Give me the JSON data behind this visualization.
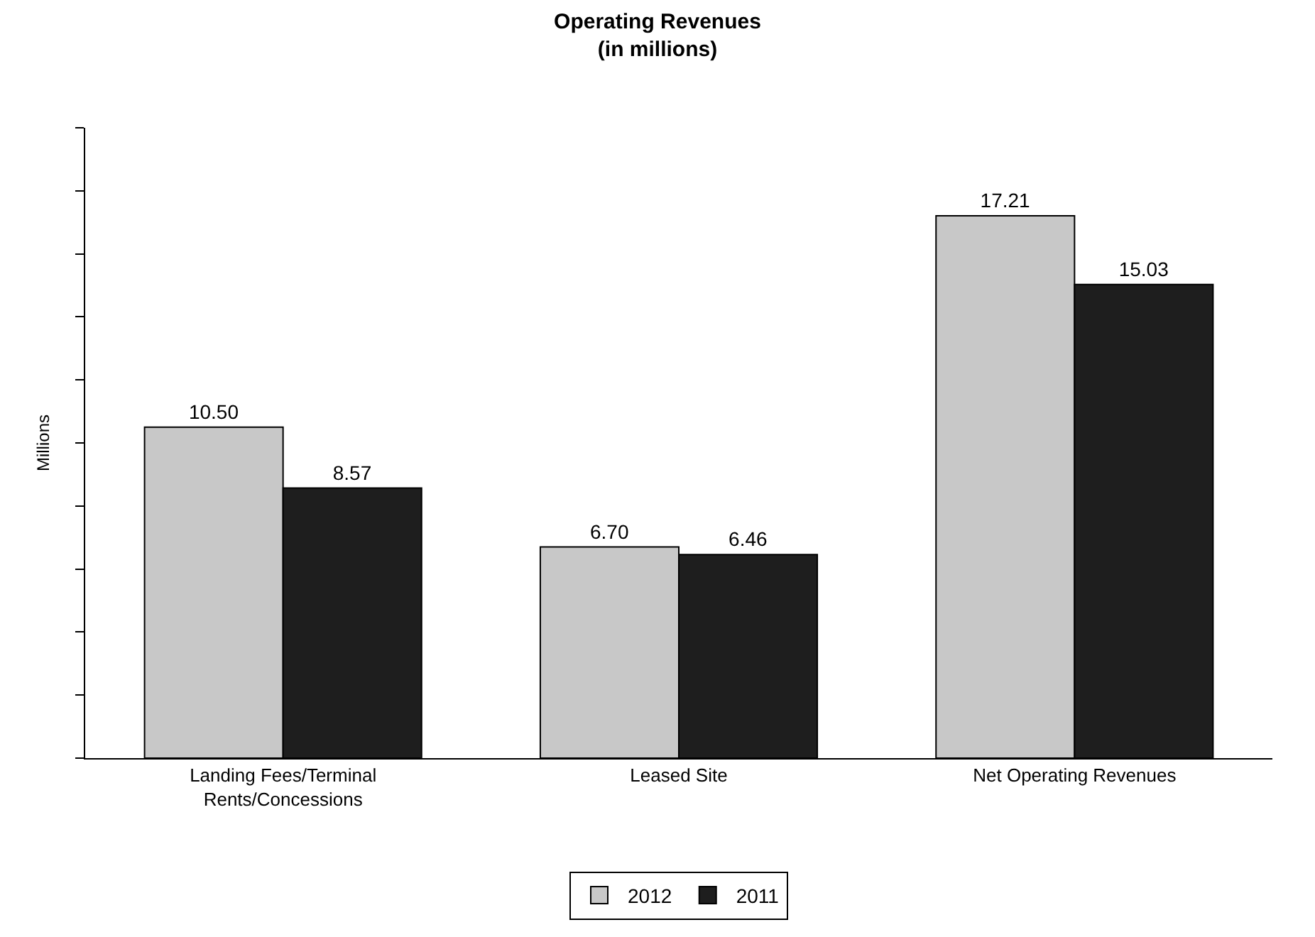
{
  "chart_data": {
    "type": "bar",
    "title": "Operating Revenues\n(in millions)",
    "ylabel": "Millions",
    "categories": [
      "Landing Fees/Terminal\nRents/Concessions",
      "Leased Site",
      "Net Operating Revenues"
    ],
    "series": [
      {
        "name": "2012",
        "color": "#c8c8c8",
        "values": [
          10.5,
          6.7,
          17.21
        ],
        "value_labels": [
          "10.50",
          "6.70",
          "17.21"
        ]
      },
      {
        "name": "2011",
        "color": "#1e1e1e",
        "values": [
          8.57,
          6.46,
          15.03
        ],
        "value_labels": [
          "8.57",
          "6.46",
          "15.03"
        ]
      }
    ],
    "ylim": [
      0,
      20
    ],
    "yticks": [
      {
        "value": 0,
        "label": null
      },
      {
        "value": 2,
        "label": null
      },
      {
        "value": 4,
        "label": null
      },
      {
        "value": 6,
        "label": null
      },
      {
        "value": 8,
        "label": null
      },
      {
        "value": 10,
        "label": null
      },
      {
        "value": 12,
        "label": null
      },
      {
        "value": 14,
        "label": null
      },
      {
        "value": 16,
        "label": null
      },
      {
        "value": 18,
        "label": null
      },
      {
        "value": 20,
        "label": null
      }
    ],
    "tick_labels": "x",
    "legend": "bottom"
  }
}
